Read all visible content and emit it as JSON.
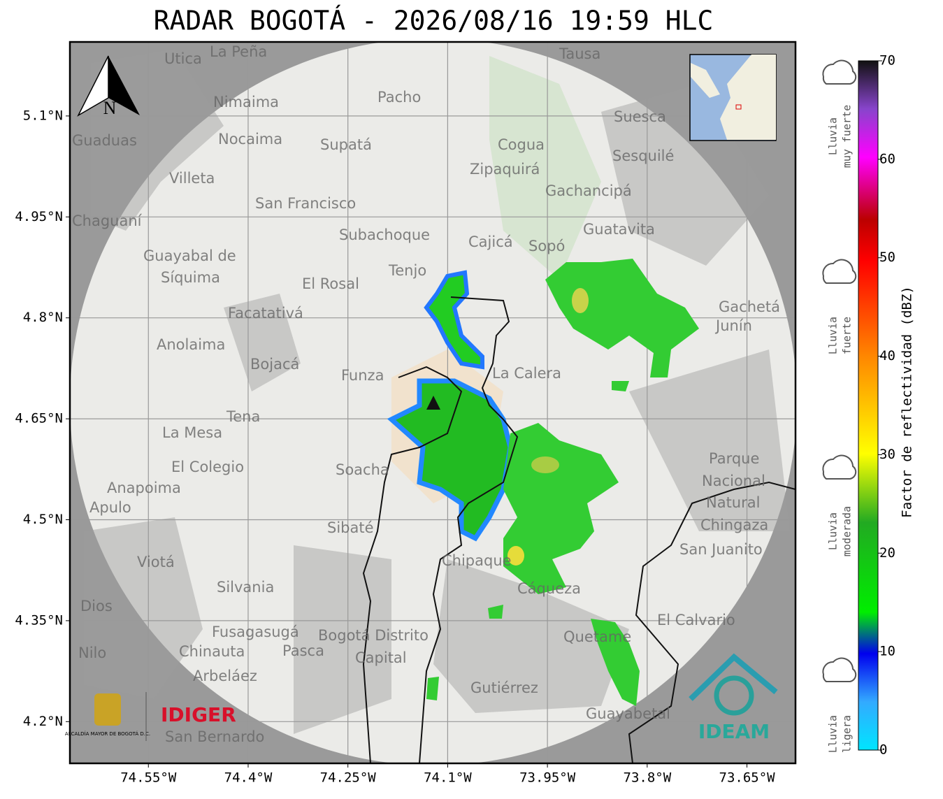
{
  "title": "RADAR BOGOTÁ - 2026/08/16 19:59 HLC",
  "map": {
    "lon_lim": [
      -74.668,
      -73.577
    ],
    "lat_lim": [
      4.138,
      5.21
    ],
    "lon_ticks": [
      {
        "value": -74.55,
        "label": "74.55°W"
      },
      {
        "value": -74.4,
        "label": "74.4°W"
      },
      {
        "value": -74.25,
        "label": "74.25°W"
      },
      {
        "value": -74.1,
        "label": "74.1°W"
      },
      {
        "value": -73.95,
        "label": "73.95°W"
      },
      {
        "value": -73.8,
        "label": "73.8°W"
      },
      {
        "value": -73.65,
        "label": "73.65°W"
      }
    ],
    "lat_ticks": [
      {
        "value": 5.1,
        "label": "5.1°N"
      },
      {
        "value": 4.95,
        "label": "4.95°N"
      },
      {
        "value": 4.8,
        "label": "4.8°N"
      },
      {
        "value": 4.65,
        "label": "4.65°N"
      },
      {
        "value": 4.5,
        "label": "4.5°N"
      },
      {
        "value": 4.35,
        "label": "4.35°N"
      },
      {
        "value": 4.2,
        "label": "4.2°N"
      }
    ],
    "north": "N",
    "places": [
      "La Peña",
      "Utica",
      "Tausa",
      "Pacho",
      "Nimaima",
      "Nocaima",
      "Supatá",
      "Guaduas",
      "Cogua",
      "Suesca",
      "Sesquilé",
      "Zipaquirá",
      "Villeta",
      "Gachancipá",
      "San Francisco",
      "Chaguaní",
      "Guatavita",
      "Subachoque",
      "Cajicá",
      "Sopó",
      "Guayabal de",
      "Síquima",
      "Tenjo",
      "El Rosal",
      "Facatativá",
      "Gachetá",
      "Junín",
      "Anolaima",
      "Bojacá",
      "Funza",
      "La Calera",
      "Tena",
      "La Mesa",
      "Soacha",
      "El Colegio",
      "Parque",
      "Nacional",
      "Natural",
      "Chingaza",
      "Anapoima",
      "Apulo",
      "Sibaté",
      "Viotá",
      "Chipaque",
      "San Juanito",
      "Silvania",
      "Cáqueza",
      "Fusagasugá",
      "Bogotá Distrito",
      "Capital",
      "El Calvario",
      "Quetame",
      "Chinauta",
      "Pasca",
      "Nilo",
      "Arbeláez",
      "Gutiérrez",
      "Guayabetal",
      "San Bernardo",
      "Dios"
    ]
  },
  "logos": {
    "alcaldia": "ALCALDÍA MAYOR DE BOGOTÁ D.C.",
    "idiger": "IDIGER",
    "ideam": "IDEAM"
  },
  "colorbar": {
    "label": "Factor de reflectividad (dBZ)",
    "lim": [
      0,
      70
    ],
    "ticks": [
      0,
      10,
      20,
      30,
      40,
      50,
      60,
      70
    ]
  },
  "legend": [
    {
      "lines": [
        "Lluvia",
        "muy fuerte"
      ]
    },
    {
      "lines": [
        "Lluvia",
        "fuerte"
      ]
    },
    {
      "lines": [
        "Lluvia",
        "moderada"
      ]
    },
    {
      "lines": [
        "Lluvia",
        "ligera"
      ]
    }
  ]
}
